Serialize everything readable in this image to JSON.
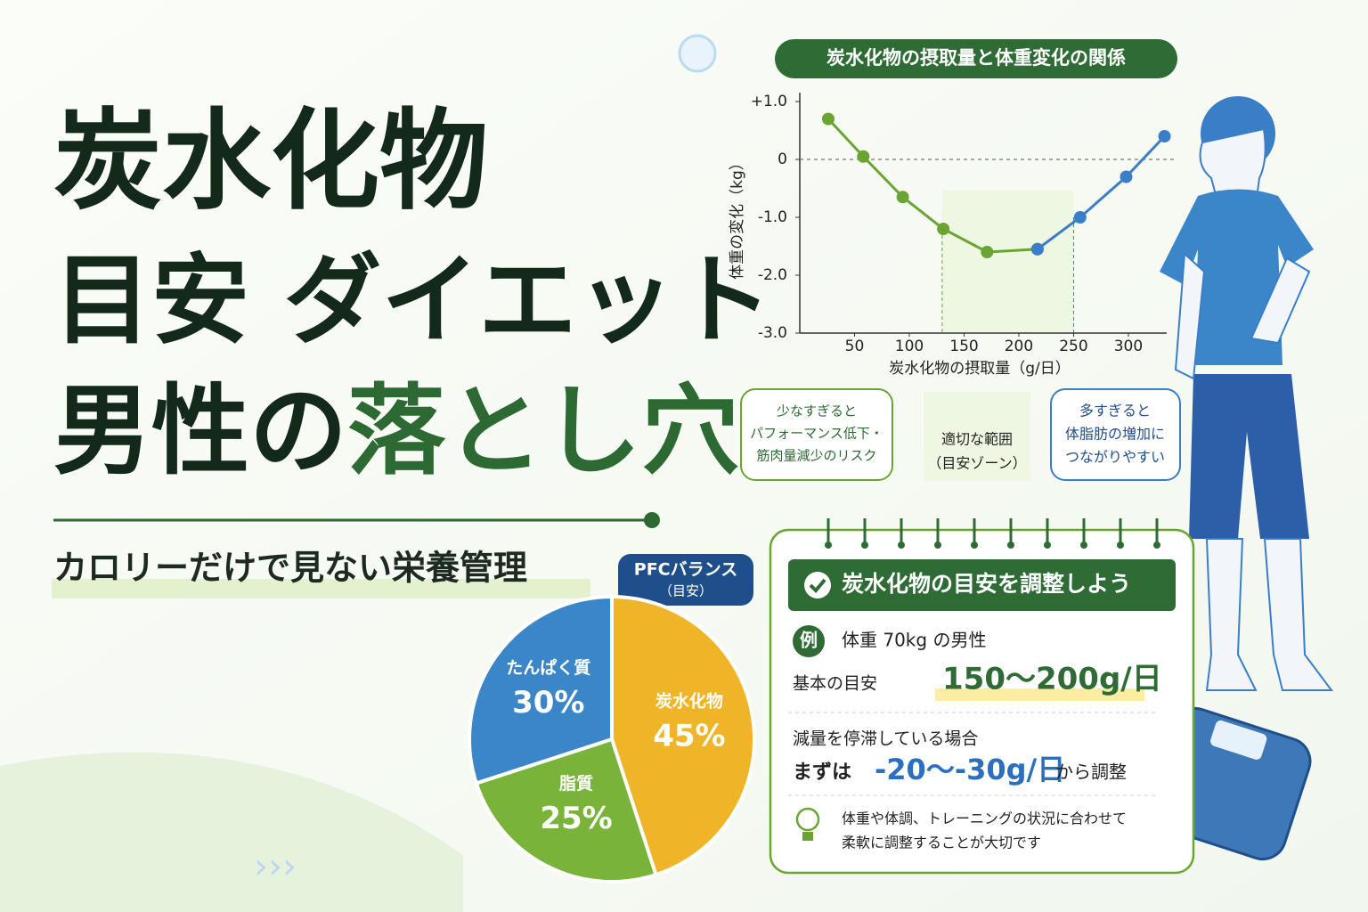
{
  "headline": {
    "line1": "炭水化物",
    "line2": "目安 ダイエット",
    "line3a": "男性の",
    "line3b": "落とし穴"
  },
  "subtitle": "カロリーだけで見ない栄養管理",
  "chart_data": [
    {
      "type": "line",
      "title": "炭水化物の摂取量と体重変化の関係",
      "x_label": "炭水化物の摂取量（g/日）",
      "y_label": "体重の変化（kg）",
      "xlim": [
        0,
        335
      ],
      "xticks": [
        50,
        100,
        150,
        200,
        250,
        300
      ],
      "ylim": [
        -3,
        1
      ],
      "yticks": [
        {
          "value": 1,
          "label": "+1.0"
        },
        0,
        {
          "value": -1,
          "label": "-1.0"
        },
        {
          "value": -2,
          "label": "-2.0"
        },
        {
          "value": -3,
          "label": "-3.0"
        }
      ],
      "series": [
        {
          "color": "#6aa532",
          "x": [
            26,
            58,
            94,
            131,
            171,
            217
          ],
          "values": [
            0.7,
            0.05,
            -0.65,
            -1.2,
            -1.6,
            -1.55
          ]
        },
        {
          "color": "#3a7ec8",
          "x": [
            217,
            256,
            298,
            333
          ],
          "values": [
            -1.55,
            -1.0,
            -0.3,
            0.4
          ]
        }
      ],
      "zone": [
        130,
        250
      ],
      "annotations": {
        "low": [
          "少なすぎると",
          "パフォーマンス低下・",
          "筋肉量減少のリスク"
        ],
        "zone": [
          "適切な範囲",
          "（目安ゾーン）"
        ],
        "high": [
          "多すぎると",
          "体脂肪の増加に",
          "つながりやすい"
        ]
      }
    },
    {
      "type": "pie",
      "title": "PFCバランス",
      "subtitle": "（目安）",
      "categories": [
        "炭水化物",
        "脂質",
        "たんぱく質"
      ],
      "values": [
        45,
        25,
        30
      ],
      "value_labels": [
        "45%",
        "25%",
        "30%"
      ],
      "colors": [
        "#f0b429",
        "#7ab33a",
        "#3a86c8"
      ]
    }
  ],
  "card": {
    "title": "炭水化物の目安を調整しよう",
    "example_badge": "例",
    "example": "体重 70kg の男性",
    "base_label": "基本の目安",
    "base_value": "150～200g/日",
    "stall_label": "減量を停滞している場合",
    "first": "まずは",
    "adjust_value": "-20～-30g/日",
    "adjust_suffix": "から調整",
    "tip": [
      "体重や体調、トレーニングの状況に合わせて",
      "柔軟に調整することが大切です"
    ]
  }
}
